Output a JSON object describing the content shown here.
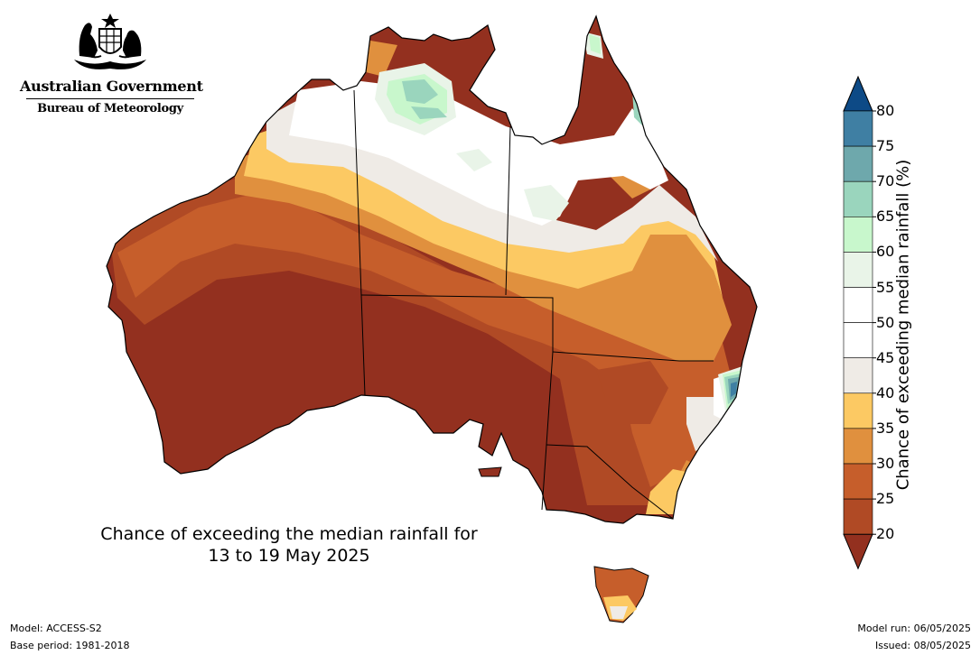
{
  "header": {
    "government_name": "Australian Government",
    "bureau_name": "Bureau of Meteorology",
    "logo_icon": "coat-of-arms-icon"
  },
  "map": {
    "title_line1": "Chance of exceeding the median rainfall for",
    "title_line2": "13 to 19 May 2025",
    "region": "Australia"
  },
  "legend": {
    "title": "Chance of exceeding median rainfall (%)",
    "ticks": [
      "80",
      "75",
      "70",
      "65",
      "60",
      "55",
      "50",
      "45",
      "40",
      "35",
      "30",
      "25",
      "20"
    ],
    "bins": [
      {
        "range": ">80",
        "color": "#0d4a86"
      },
      {
        "range": "75-80",
        "color": "#3f7fa3"
      },
      {
        "range": "70-75",
        "color": "#6ea8ac"
      },
      {
        "range": "65-70",
        "color": "#9ad5bd"
      },
      {
        "range": "60-65",
        "color": "#c8f7cc"
      },
      {
        "range": "55-60",
        "color": "#e9f4e8"
      },
      {
        "range": "50-55",
        "color": "#ffffff"
      },
      {
        "range": "45-50",
        "color": "#ffffff"
      },
      {
        "range": "40-45",
        "color": "#efebe6"
      },
      {
        "range": "35-40",
        "color": "#fcc963"
      },
      {
        "range": "30-35",
        "color": "#e0903e"
      },
      {
        "range": "25-30",
        "color": "#c65e2b"
      },
      {
        "range": "20-25",
        "color": "#b04a25"
      },
      {
        "range": "<20",
        "color": "#93301f"
      }
    ]
  },
  "footer": {
    "model": "Model: ACCESS-S2",
    "base_period": "Base period: 1981-2018",
    "model_run": "Model run: 06/05/2025",
    "issued": "Issued: 08/05/2025"
  }
}
